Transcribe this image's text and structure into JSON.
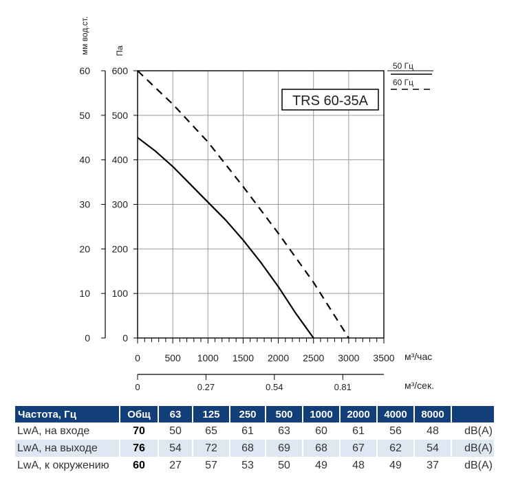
{
  "chart_data": {
    "type": "line",
    "title": "TRS 60-35A",
    "ylabel_mm": "мм вод.ст.",
    "ylabel_pa": "Па",
    "xlabel_m3h": "м³/час",
    "xlabel_m3s": "м³/сек.",
    "x_ticks_m3h": [
      "0",
      "500",
      "1000",
      "1500",
      "2000",
      "2500",
      "3000",
      "3500"
    ],
    "x_ticks_m3s": [
      "0",
      "0.27",
      "0.54",
      "0.81"
    ],
    "x_ticks_m3s_values": [
      0,
      0.27,
      0.54,
      0.81
    ],
    "y_ticks_pa": [
      "0",
      "100",
      "200",
      "300",
      "400",
      "500",
      "600"
    ],
    "y_ticks_mm": [
      "0",
      "10",
      "20",
      "30",
      "40",
      "50",
      "60"
    ],
    "xlim": [
      0,
      3500
    ],
    "ylim": [
      0,
      600
    ],
    "grid": true,
    "legend": [
      "50 Гц",
      "60 Гц"
    ],
    "series": [
      {
        "name": "50 Гц",
        "style": "solid",
        "x": [
          0,
          250,
          500,
          750,
          1000,
          1250,
          1500,
          1750,
          2000,
          2250,
          2500
        ],
        "y": [
          450,
          420,
          385,
          345,
          305,
          265,
          220,
          170,
          115,
          55,
          0
        ]
      },
      {
        "name": "60 Гц",
        "style": "dashed",
        "x": [
          0,
          500,
          1000,
          1500,
          2000,
          2500,
          3000
        ],
        "y": [
          600,
          525,
          440,
          340,
          235,
          125,
          0
        ]
      }
    ]
  },
  "table": {
    "headers": [
      "Частота, Гц",
      "Общ",
      "63",
      "125",
      "250",
      "500",
      "1000",
      "2000",
      "4000",
      "8000",
      ""
    ],
    "rows": [
      {
        "label": "LwA, на входе",
        "total": "70",
        "values": [
          "50",
          "65",
          "61",
          "63",
          "60",
          "61",
          "56",
          "48"
        ],
        "unit": "dB(A)"
      },
      {
        "label": "LwA, на выходе",
        "total": "76",
        "values": [
          "54",
          "72",
          "68",
          "69",
          "68",
          "67",
          "62",
          "54"
        ],
        "unit": "dB(A)"
      },
      {
        "label": "LwA, к окружению",
        "total": "60",
        "values": [
          "27",
          "57",
          "53",
          "50",
          "49",
          "48",
          "49",
          "37"
        ],
        "unit": "dB(A)"
      }
    ]
  },
  "colors": {
    "header_bg": "#123e7a",
    "row_alt_bg": "#dfe7f2",
    "line": "#000000",
    "grid": "#999999"
  }
}
